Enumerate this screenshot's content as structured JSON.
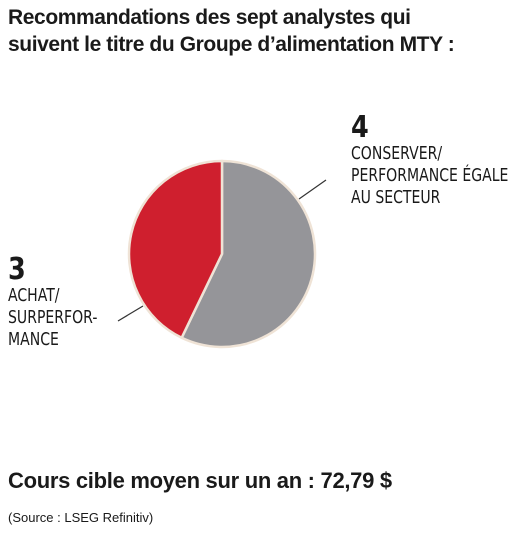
{
  "title_lines": [
    "Recommandations des sept analystes qui",
    "suivent le titre du Groupe d’alimentation MTY :"
  ],
  "chart_data": {
    "type": "pie",
    "title": "Recommandations des sept analystes qui suivent le titre du Groupe d’alimentation MTY :",
    "slices": [
      {
        "value": 4,
        "label_lines": [
          "CONSERVER/",
          "PERFORMANCE ÉGALE",
          "AU SECTEUR"
        ],
        "color": "#959599"
      },
      {
        "value": 3,
        "label_lines": [
          "ACHAT/",
          "SURPERFOR-",
          "MANCE"
        ],
        "color": "#cf1f2e"
      }
    ],
    "start": "12 o'clock",
    "direction": "clockwise"
  },
  "labels": {
    "right": {
      "number": "4",
      "lines": [
        "CONSERVER/",
        "PERFORMANCE ÉGALE",
        "AU SECTEUR"
      ]
    },
    "left": {
      "number": "3",
      "lines": [
        "ACHAT/",
        "SURPERFOR-",
        "MANCE"
      ]
    }
  },
  "footer": {
    "price": "Cours cible moyen sur un an : 72,79 $",
    "source": "(Source : LSEG Refinitiv)"
  },
  "colors": {
    "slice_edge": "#efe3d6",
    "leader": "#333333"
  }
}
